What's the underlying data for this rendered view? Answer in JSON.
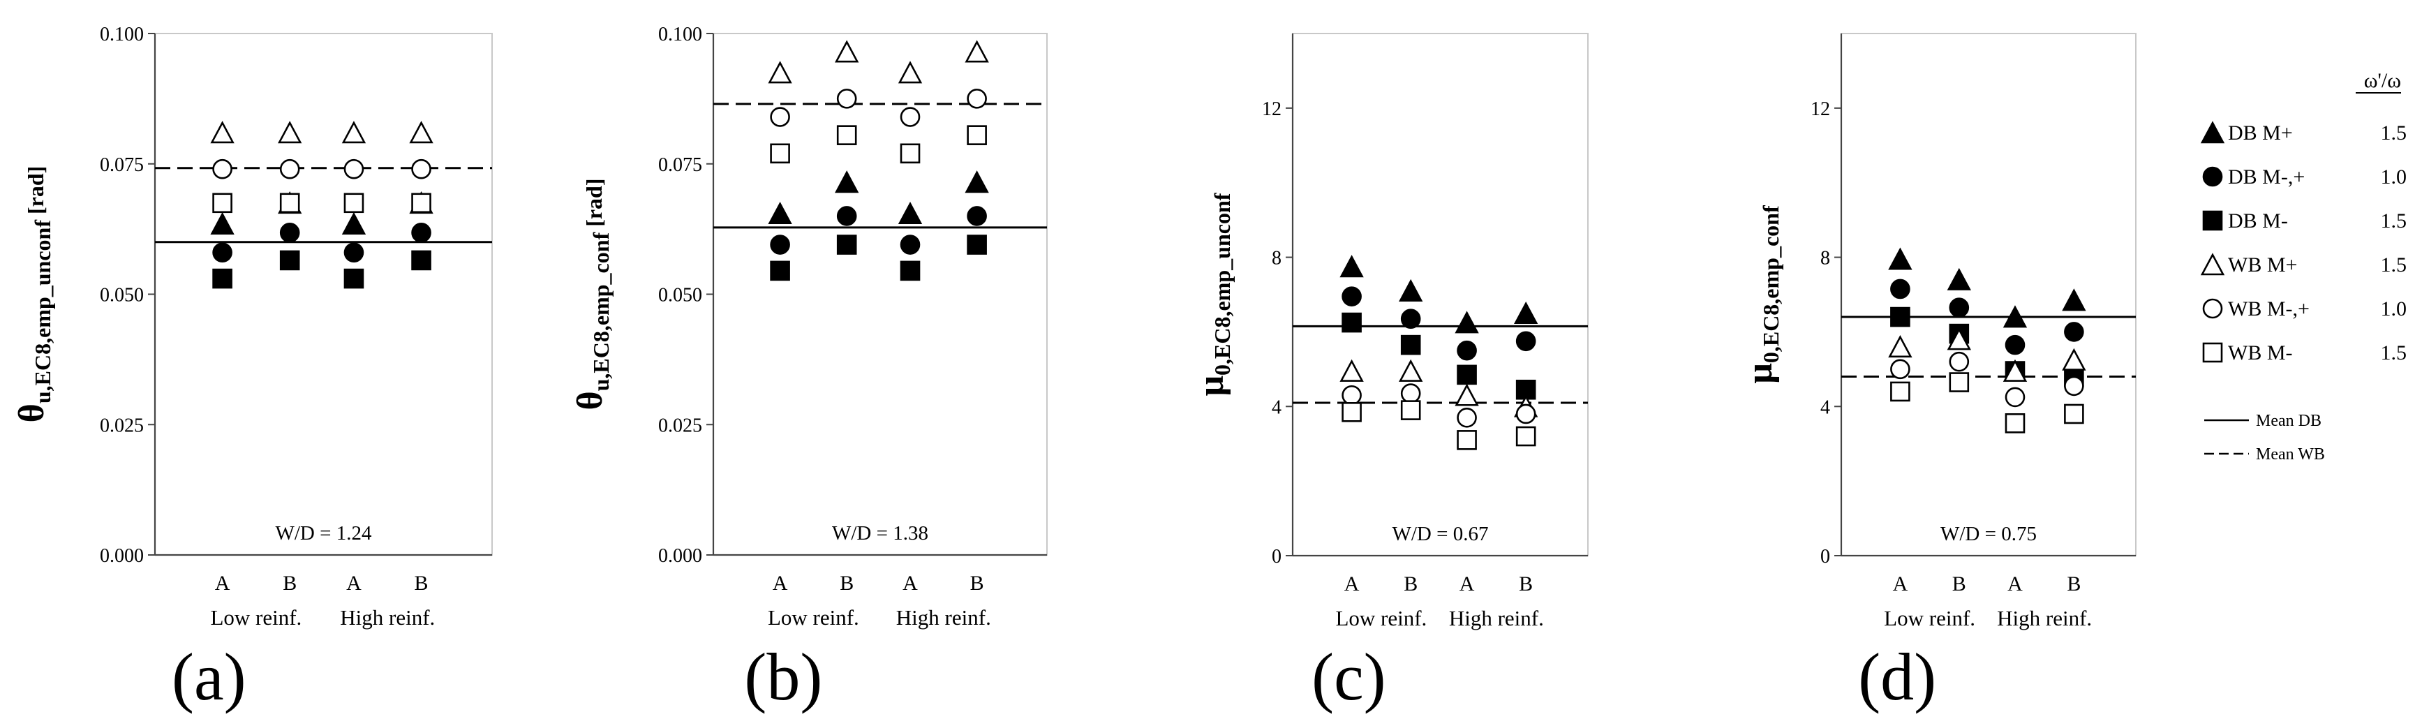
{
  "chart_data": [
    {
      "type": "scatter",
      "panel_label": "(a)",
      "ylabel_main": "θ",
      "ylabel_sub": "u,EC8,emp_unconf",
      "ylabel_unit": "[rad]",
      "yticks": [
        "0.000",
        "0.025",
        "0.050",
        "0.075",
        "0.100"
      ],
      "ylim": [
        0,
        0.1
      ],
      "categories": [
        "A",
        "B",
        "A",
        "B"
      ],
      "groups": [
        "Low reinf.",
        "High reinf."
      ],
      "annotation": "W/D = 1.24",
      "series": [
        {
          "name": "DB M+",
          "marker": "triangle-filled",
          "values": [
            0.0635,
            0.0675,
            0.0635,
            0.0675
          ]
        },
        {
          "name": "DB M-,+",
          "marker": "circle-filled",
          "values": [
            0.058,
            0.0618,
            0.058,
            0.0618
          ]
        },
        {
          "name": "DB M-",
          "marker": "square-filled",
          "values": [
            0.053,
            0.0565,
            0.053,
            0.0565
          ]
        },
        {
          "name": "WB M+",
          "marker": "triangle-open",
          "values": [
            0.081,
            0.081,
            0.081,
            0.081
          ]
        },
        {
          "name": "WB M-,+",
          "marker": "circle-open",
          "values": [
            0.074,
            0.074,
            0.074,
            0.074
          ]
        },
        {
          "name": "WB M-",
          "marker": "square-open",
          "values": [
            0.0675,
            0.0675,
            0.0675,
            0.0675
          ]
        }
      ],
      "mean_db": 0.06,
      "mean_wb": 0.0742
    },
    {
      "type": "scatter",
      "panel_label": "(b)",
      "ylabel_main": "θ",
      "ylabel_sub": "u,EC8,emp_conf",
      "ylabel_unit": "[rad]",
      "yticks": [
        "0.000",
        "0.025",
        "0.050",
        "0.075",
        "0.100"
      ],
      "ylim": [
        0,
        0.1
      ],
      "categories": [
        "A",
        "B",
        "A",
        "B"
      ],
      "groups": [
        "Low reinf.",
        "High reinf."
      ],
      "annotation": "W/D = 1.38",
      "series": [
        {
          "name": "DB M+",
          "marker": "triangle-filled",
          "values": [
            0.0655,
            0.0715,
            0.0655,
            0.0715
          ]
        },
        {
          "name": "DB M-,+",
          "marker": "circle-filled",
          "values": [
            0.0595,
            0.065,
            0.0595,
            0.065
          ]
        },
        {
          "name": "DB M-",
          "marker": "square-filled",
          "values": [
            0.0545,
            0.0595,
            0.0545,
            0.0595
          ]
        },
        {
          "name": "WB M+",
          "marker": "triangle-open",
          "values": [
            0.0925,
            0.0965,
            0.0925,
            0.0965
          ]
        },
        {
          "name": "WB M-,+",
          "marker": "circle-open",
          "values": [
            0.084,
            0.0875,
            0.084,
            0.0875
          ]
        },
        {
          "name": "WB M-",
          "marker": "square-open",
          "values": [
            0.077,
            0.0805,
            0.077,
            0.0805
          ]
        }
      ],
      "mean_db": 0.0628,
      "mean_wb": 0.0865
    },
    {
      "type": "scatter",
      "panel_label": "(c)",
      "ylabel_main": "μ",
      "ylabel_sub": "0,EC8,emp_unconf",
      "ylabel_unit": "",
      "yticks": [
        "0",
        "4",
        "8",
        "12"
      ],
      "ylim": [
        0,
        14
      ],
      "categories": [
        "A",
        "B",
        "A",
        "B"
      ],
      "groups": [
        "Low reinf.",
        "High reinf."
      ],
      "annotation": "W/D = 0.67",
      "series": [
        {
          "name": "DB M+",
          "marker": "triangle-filled",
          "values": [
            7.75,
            7.1,
            6.25,
            6.5
          ]
        },
        {
          "name": "DB M-,+",
          "marker": "circle-filled",
          "values": [
            6.95,
            6.35,
            5.5,
            5.75
          ]
        },
        {
          "name": "DB M-",
          "marker": "square-filled",
          "values": [
            6.25,
            5.65,
            4.85,
            4.45
          ]
        },
        {
          "name": "WB M+",
          "marker": "triangle-open",
          "values": [
            4.95,
            4.95,
            4.3,
            4.0
          ]
        },
        {
          "name": "WB M-,+",
          "marker": "circle-open",
          "values": [
            4.3,
            4.35,
            3.7,
            3.8
          ]
        },
        {
          "name": "WB M-",
          "marker": "square-open",
          "values": [
            3.85,
            3.9,
            3.1,
            3.2
          ]
        }
      ],
      "mean_db": 6.15,
      "mean_wb": 4.1
    },
    {
      "type": "scatter",
      "panel_label": "(d)",
      "ylabel_main": "μ",
      "ylabel_sub": "0,EC8,emp_conf",
      "ylabel_unit": "",
      "yticks": [
        "0",
        "4",
        "8",
        "12"
      ],
      "ylim": [
        0,
        14
      ],
      "categories": [
        "A",
        "B",
        "A",
        "B"
      ],
      "groups": [
        "Low reinf.",
        "High reinf."
      ],
      "annotation": "W/D = 0.75",
      "series": [
        {
          "name": "DB M+",
          "marker": "triangle-filled",
          "values": [
            7.95,
            7.4,
            6.4,
            6.85
          ]
        },
        {
          "name": "DB M-,+",
          "marker": "circle-filled",
          "values": [
            7.15,
            6.65,
            5.65,
            6.0
          ]
        },
        {
          "name": "DB M-",
          "marker": "square-filled",
          "values": [
            6.4,
            5.95,
            4.95,
            4.8
          ]
        },
        {
          "name": "WB M+",
          "marker": "triangle-open",
          "values": [
            5.6,
            5.8,
            4.95,
            5.25
          ]
        },
        {
          "name": "WB M-,+",
          "marker": "circle-open",
          "values": [
            5.0,
            5.2,
            4.25,
            4.55
          ]
        },
        {
          "name": "WB M-",
          "marker": "square-open",
          "values": [
            4.4,
            4.65,
            3.55,
            3.8
          ]
        }
      ],
      "mean_db": 6.4,
      "mean_wb": 4.8
    }
  ],
  "legend": {
    "header": "ω'/ω",
    "items": [
      {
        "label": "DB M+",
        "marker": "triangle-filled",
        "ratio": "1.5"
      },
      {
        "label": "DB M-,+",
        "marker": "circle-filled",
        "ratio": "1.0"
      },
      {
        "label": "DB M-",
        "marker": "square-filled",
        "ratio": "1.5"
      },
      {
        "label": "WB M+",
        "marker": "triangle-open",
        "ratio": "1.5"
      },
      {
        "label": "WB M-,+",
        "marker": "circle-open",
        "ratio": "1.0"
      },
      {
        "label": "WB M-",
        "marker": "square-open",
        "ratio": "1.5"
      }
    ],
    "lines": [
      {
        "label": "Mean DB",
        "style": "solid"
      },
      {
        "label": "Mean WB",
        "style": "dashed"
      }
    ]
  }
}
